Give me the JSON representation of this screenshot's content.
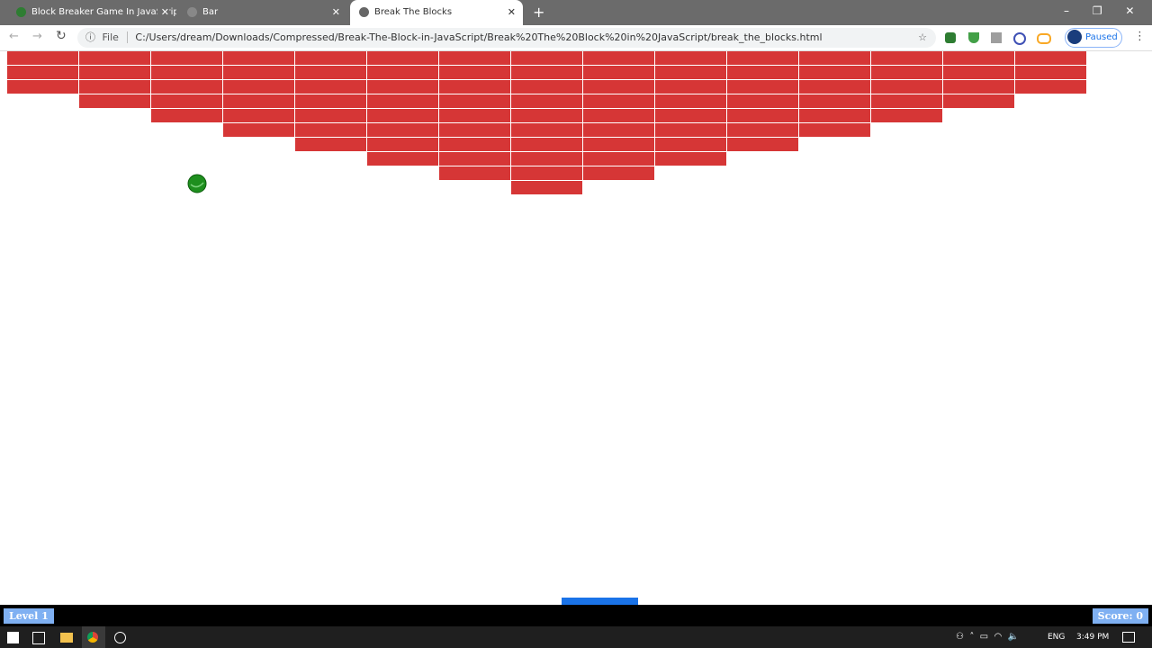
{
  "browser": {
    "tabs": [
      {
        "title": "Block Breaker Game In JavaScript"
      },
      {
        "title": "Bar"
      },
      {
        "title": "Break The Blocks"
      }
    ],
    "address_bar": {
      "scheme_label": "File",
      "url": "C:/Users/dream/Downloads/Compressed/Break-The-Block-in-JavaScript/Break%20The%20Block%20in%20JavaScript/break_the_blocks.html"
    },
    "profile_status": "Paused"
  },
  "game": {
    "level": "Level 1",
    "score": "Score: 0"
  },
  "taskbar": {
    "language": "ENG",
    "time": "3:49 PM"
  }
}
